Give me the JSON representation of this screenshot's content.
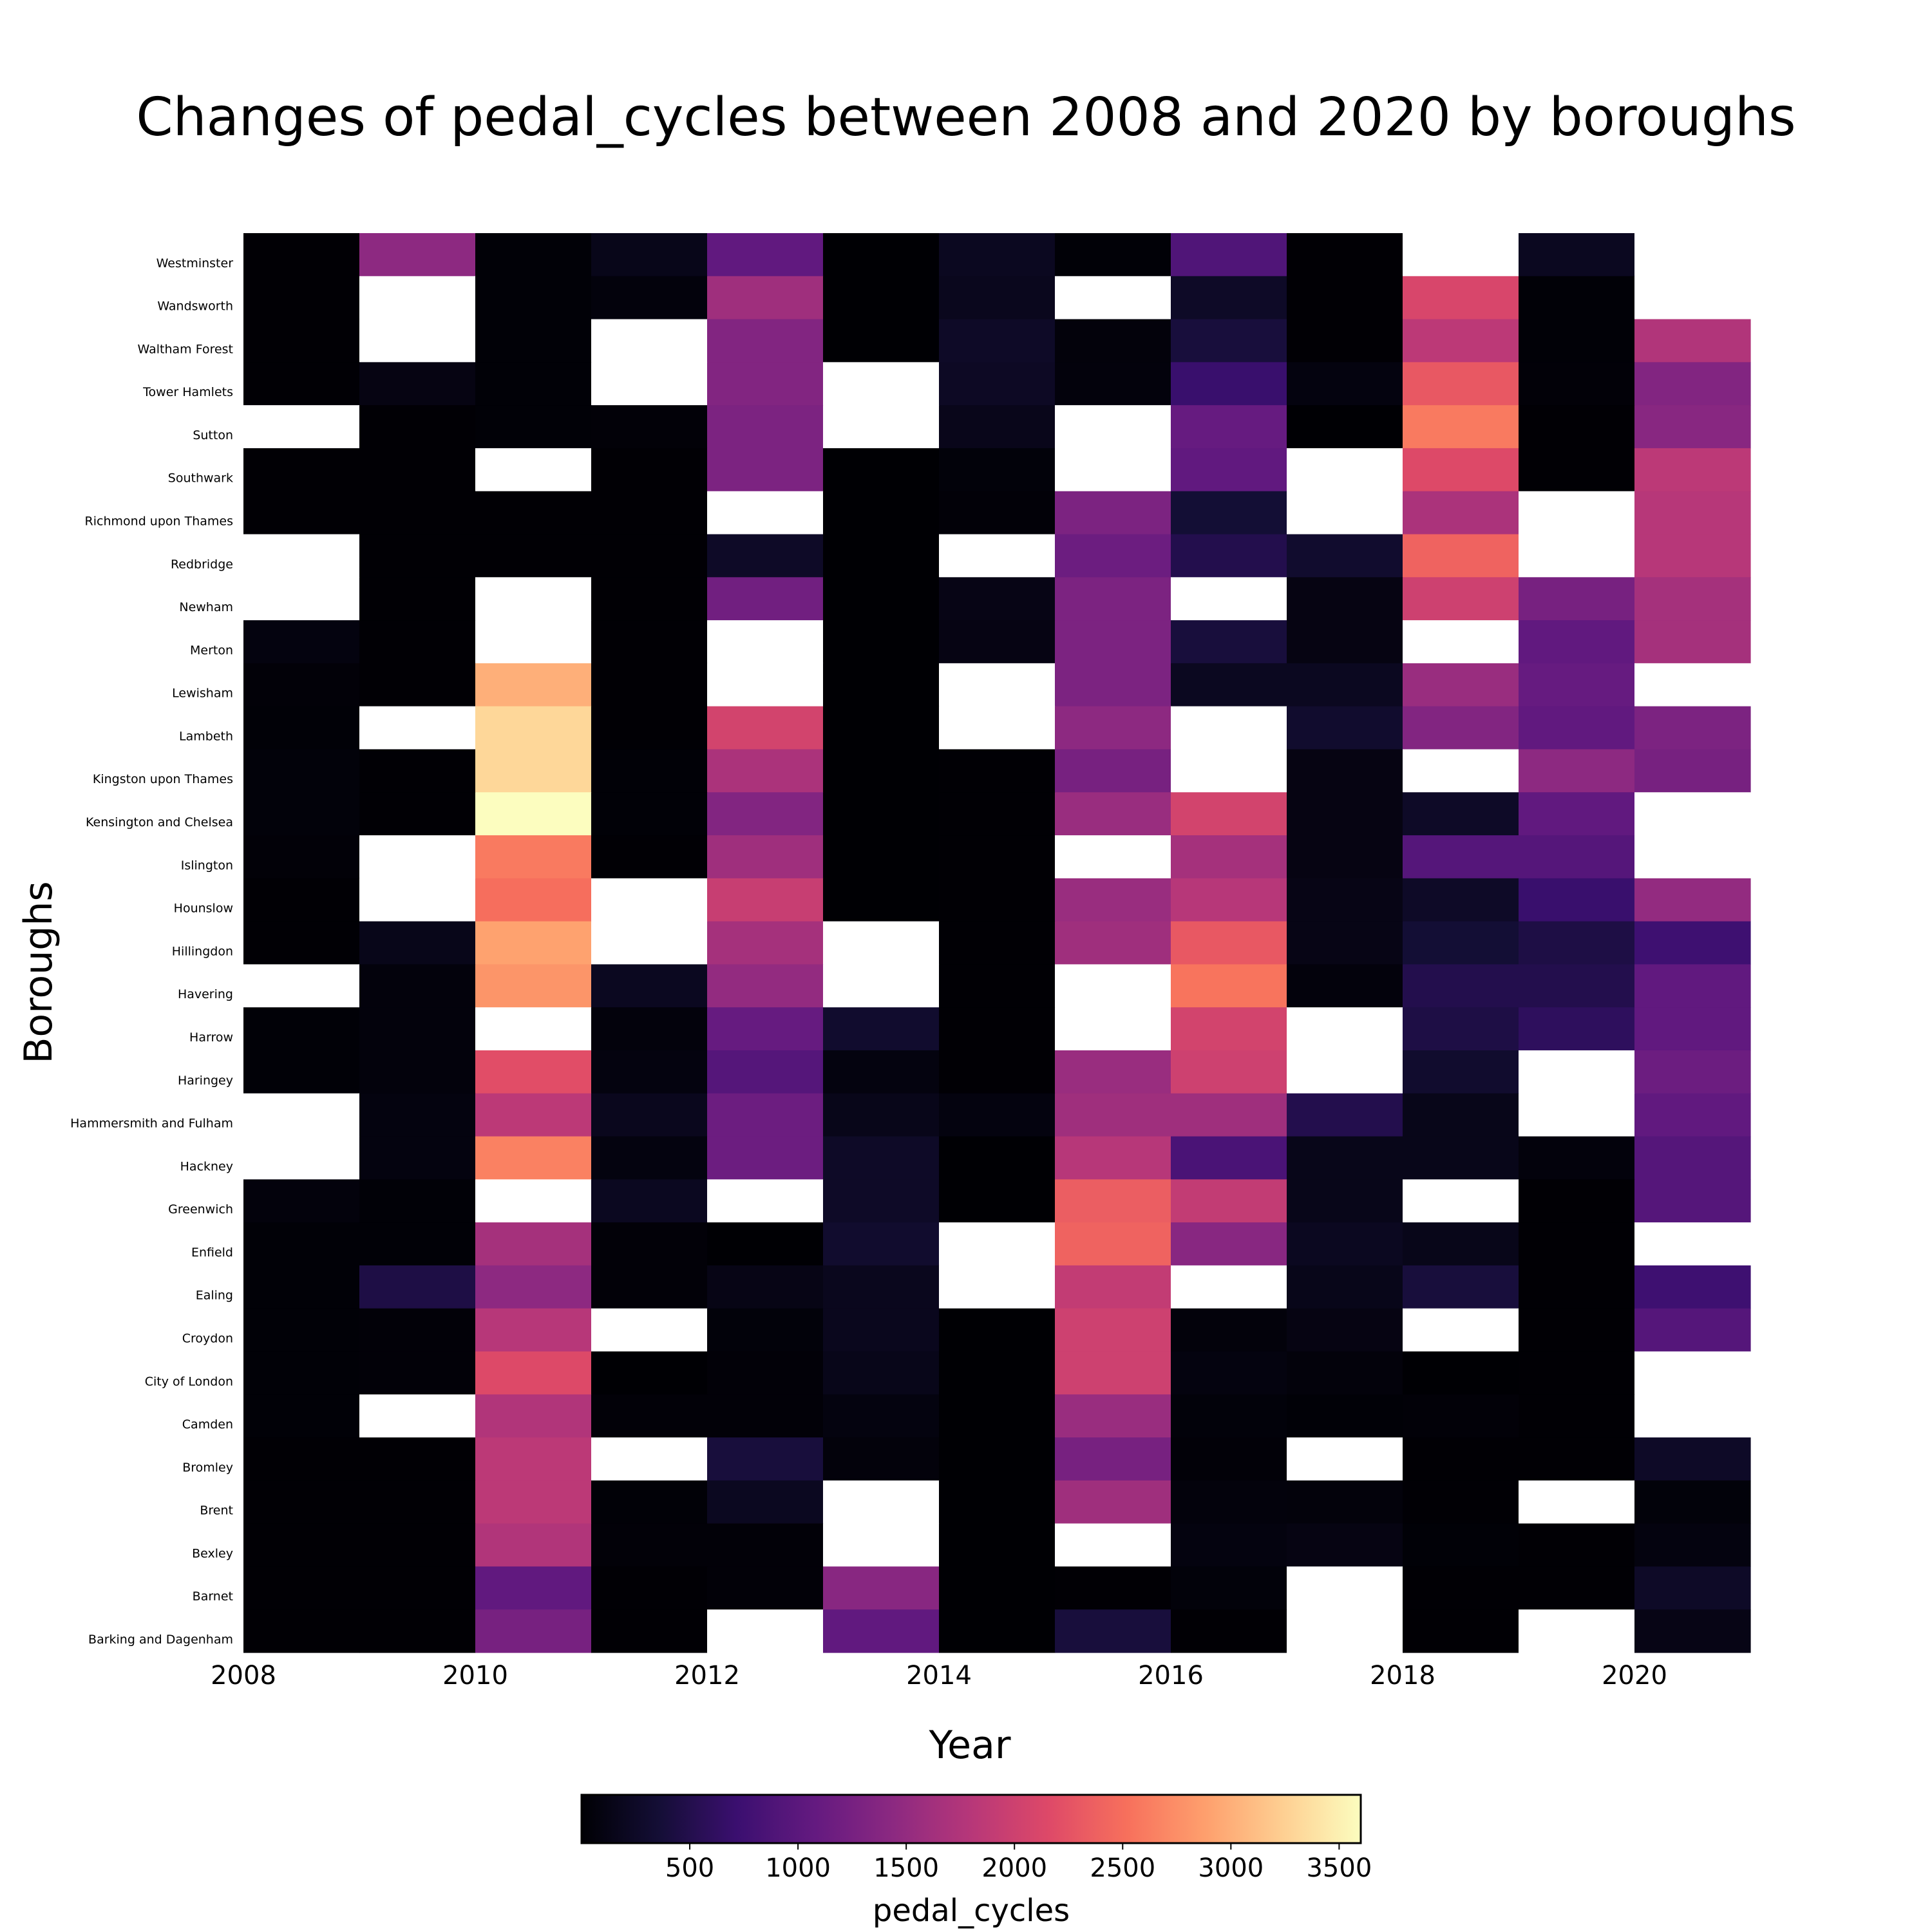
{
  "chart_data": {
    "type": "heatmap",
    "title": "Changes of pedal_cycles between 2008 and 2020 by boroughs",
    "xlabel": "Year",
    "ylabel": "Boroughs",
    "x_ticks": [
      "2008",
      "2010",
      "2012",
      "2014",
      "2016",
      "2018",
      "2020"
    ],
    "x_range": [
      2008,
      2021
    ],
    "years": [
      2008,
      2009,
      2010,
      2011,
      2012,
      2013,
      2014,
      2015,
      2016,
      2017,
      2018,
      2019,
      2020
    ],
    "boroughs": [
      "Westminster",
      "Wandsworth",
      "Waltham Forest",
      "Tower Hamlets",
      "Sutton",
      "Southwark",
      "Richmond upon Thames",
      "Redbridge",
      "Newham",
      "Merton",
      "Lewisham",
      "Lambeth",
      "Kingston upon Thames",
      "Kensington and Chelsea",
      "Islington",
      "Hounslow",
      "Hillingdon",
      "Havering",
      "Harrow",
      "Haringey",
      "Hammersmith and Fulham",
      "Hackney",
      "Greenwich",
      "Enfield",
      "Ealing",
      "Croydon",
      "City of London",
      "Camden",
      "Bromley",
      "Brent",
      "Bexley",
      "Barnet",
      "Barking and Dagenham"
    ],
    "row_values": [
      [
        10,
        1450,
        20,
        150,
        1050,
        0,
        200,
        20,
        900,
        10,
        null,
        200,
        null
      ],
      [
        10,
        null,
        20,
        60,
        1600,
        0,
        180,
        null,
        250,
        10,
        2100,
        20,
        null
      ],
      [
        10,
        null,
        20,
        null,
        1350,
        0,
        250,
        50,
        400,
        10,
        1850,
        20,
        1750
      ],
      [
        10,
        100,
        20,
        null,
        1350,
        null,
        230,
        60,
        700,
        80,
        2300,
        30,
        1350
      ],
      [
        null,
        10,
        20,
        30,
        1300,
        null,
        160,
        null,
        1100,
        0,
        2600,
        10,
        1400
      ],
      [
        10,
        10,
        null,
        10,
        1300,
        0,
        40,
        null,
        1050,
        null,
        2150,
        10,
        1850
      ],
      [
        10,
        10,
        10,
        10,
        null,
        0,
        30,
        1300,
        350,
        null,
        1700,
        null,
        1800
      ],
      [
        null,
        10,
        10,
        10,
        250,
        0,
        null,
        1150,
        500,
        300,
        2400,
        null,
        1800
      ],
      [
        null,
        10,
        null,
        10,
        1200,
        0,
        120,
        1300,
        null,
        100,
        2000,
        1250,
        1650
      ],
      [
        80,
        10,
        null,
        10,
        null,
        0,
        110,
        1300,
        400,
        100,
        null,
        1050,
        1650
      ],
      [
        30,
        10,
        3000,
        10,
        null,
        0,
        null,
        1300,
        200,
        200,
        1550,
        1100,
        null
      ],
      [
        20,
        null,
        3300,
        10,
        2050,
        0,
        null,
        1450,
        null,
        300,
        1350,
        1050,
        1300
      ],
      [
        40,
        10,
        3300,
        20,
        1700,
        0,
        10,
        1250,
        null,
        100,
        null,
        1450,
        1250
      ],
      [
        40,
        10,
        3600,
        20,
        1350,
        0,
        10,
        1550,
        2050,
        100,
        250,
        1050,
        null
      ],
      [
        30,
        null,
        2600,
        10,
        1600,
        0,
        10,
        null,
        1650,
        100,
        950,
        950,
        null
      ],
      [
        10,
        null,
        2500,
        null,
        1950,
        0,
        10,
        1550,
        1800,
        120,
        250,
        700,
        1500
      ],
      [
        10,
        150,
        2900,
        null,
        1650,
        null,
        10,
        1600,
        2300,
        120,
        350,
        450,
        750
      ],
      [
        null,
        60,
        2800,
        200,
        1500,
        null,
        10,
        null,
        2550,
        60,
        500,
        500,
        1050
      ],
      [
        20,
        60,
        null,
        60,
        1100,
        300,
        10,
        null,
        2050,
        null,
        450,
        600,
        1050
      ],
      [
        20,
        60,
        2200,
        80,
        950,
        80,
        10,
        1550,
        2000,
        null,
        300,
        null,
        1150
      ],
      [
        null,
        80,
        1850,
        180,
        1150,
        150,
        80,
        1600,
        1600,
        500,
        150,
        null,
        1050
      ],
      [
        null,
        80,
        2650,
        80,
        1150,
        250,
        0,
        1800,
        850,
        150,
        150,
        60,
        950
      ],
      [
        60,
        20,
        null,
        200,
        null,
        250,
        0,
        2350,
        1900,
        150,
        null,
        10,
        950
      ],
      [
        20,
        20,
        1650,
        30,
        0,
        300,
        null,
        2400,
        1400,
        200,
        150,
        10,
        null
      ],
      [
        20,
        450,
        1450,
        30,
        120,
        180,
        null,
        1900,
        null,
        150,
        400,
        10,
        750
      ],
      [
        20,
        30,
        1800,
        null,
        40,
        180,
        0,
        2000,
        50,
        100,
        null,
        10,
        950
      ],
      [
        20,
        30,
        2150,
        0,
        30,
        150,
        0,
        2000,
        80,
        50,
        0,
        10,
        null
      ],
      [
        20,
        null,
        1750,
        30,
        30,
        80,
        0,
        1550,
        40,
        20,
        30,
        10,
        null
      ],
      [
        10,
        10,
        1850,
        null,
        400,
        50,
        0,
        1250,
        30,
        null,
        10,
        10,
        250
      ],
      [
        10,
        10,
        1850,
        20,
        200,
        null,
        0,
        1600,
        60,
        50,
        10,
        null,
        40
      ],
      [
        10,
        10,
        1750,
        30,
        30,
        null,
        0,
        null,
        80,
        100,
        20,
        10,
        80
      ],
      [
        10,
        10,
        1050,
        10,
        30,
        1400,
        0,
        10,
        40,
        null,
        10,
        10,
        250
      ],
      [
        10,
        10,
        1250,
        10,
        null,
        1050,
        0,
        400,
        10,
        null,
        10,
        null,
        120
      ]
    ],
    "colorbar": {
      "label": "pedal_cycles",
      "colormap": "magma",
      "vmin": 0,
      "vmax": 3600,
      "ticks": [
        "500",
        "1000",
        "1500",
        "2000",
        "2500",
        "3000",
        "3500"
      ]
    },
    "missing_color": "#ffffff"
  }
}
